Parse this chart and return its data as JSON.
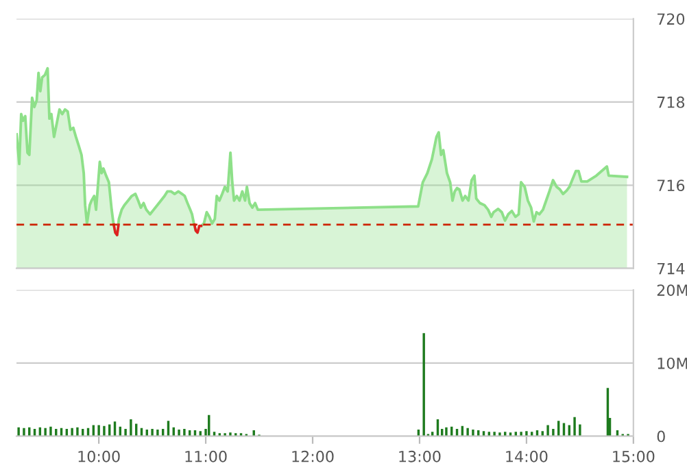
{
  "chart_data": [
    {
      "type": "area",
      "xlim": [
        9.23,
        15.0
      ],
      "ylim": [
        714,
        720
      ],
      "yticks": [
        714,
        716,
        718,
        720
      ],
      "grid": "y",
      "tick_labels": "y",
      "ref_lines": [
        {
          "axis": "y",
          "value": 715.05,
          "color": "#cc2200",
          "line_style": "dashed"
        }
      ],
      "x": [
        9.231,
        9.256,
        9.274,
        9.291,
        9.312,
        9.333,
        9.35,
        9.376,
        9.397,
        9.419,
        9.436,
        9.453,
        9.47,
        9.496,
        9.521,
        9.538,
        9.556,
        9.581,
        9.607,
        9.632,
        9.658,
        9.684,
        9.709,
        9.735,
        9.761,
        9.786,
        9.812,
        9.838,
        9.859,
        9.872,
        9.889,
        9.915,
        9.932,
        9.957,
        9.974,
        9.991,
        10.009,
        10.026,
        10.043,
        10.068,
        10.094,
        10.12,
        10.137,
        10.154,
        10.171,
        10.188,
        10.214,
        10.239,
        10.274,
        10.308,
        10.342,
        10.368,
        10.393,
        10.419,
        10.444,
        10.479,
        10.513,
        10.547,
        10.581,
        10.615,
        10.641,
        10.675,
        10.709,
        10.744,
        10.778,
        10.803,
        10.829,
        10.855,
        10.872,
        10.889,
        10.906,
        10.923,
        10.94,
        10.957,
        10.983,
        11.009,
        11.034,
        11.06,
        11.085,
        11.103,
        11.128,
        11.154,
        11.179,
        11.205,
        11.231,
        11.248,
        11.265,
        11.291,
        11.316,
        11.342,
        11.368,
        11.385,
        11.41,
        11.436,
        11.462,
        11.487,
        12.987,
        13.03,
        13.073,
        13.115,
        13.158,
        13.179,
        13.201,
        13.222,
        13.256,
        13.286,
        13.308,
        13.329,
        13.35,
        13.372,
        13.402,
        13.427,
        13.457,
        13.487,
        13.513,
        13.53,
        13.564,
        13.607,
        13.641,
        13.671,
        13.692,
        13.735,
        13.769,
        13.799,
        13.829,
        13.863,
        13.897,
        13.927,
        13.949,
        13.983,
        14.013,
        14.043,
        14.068,
        14.094,
        14.12,
        14.154,
        14.184,
        14.214,
        14.248,
        14.282,
        14.312,
        14.342,
        14.376,
        14.402,
        14.427,
        14.462,
        14.487,
        14.513,
        14.568,
        14.654,
        14.752,
        14.769,
        14.94
      ],
      "series": [
        {
          "type": "area",
          "color": "#8ee089",
          "values": [
            717.22,
            716.51,
            717.71,
            717.55,
            717.66,
            716.78,
            716.73,
            718.1,
            717.88,
            718.04,
            718.7,
            718.26,
            718.59,
            718.65,
            718.81,
            717.6,
            717.71,
            717.16,
            717.49,
            717.82,
            717.71,
            717.82,
            717.77,
            717.33,
            717.38,
            717.16,
            716.95,
            716.73,
            716.29,
            715.52,
            715.08,
            715.52,
            715.63,
            715.74,
            715.41,
            715.96,
            716.56,
            716.29,
            716.4,
            716.23,
            716.07,
            715.41,
            715.08,
            714.86,
            714.8,
            715.19,
            715.41,
            715.52,
            715.63,
            715.74,
            715.79,
            715.63,
            715.46,
            715.57,
            715.41,
            715.3,
            715.41,
            715.52,
            715.63,
            715.74,
            715.85,
            715.85,
            715.79,
            715.85,
            715.79,
            715.74,
            715.57,
            715.41,
            715.3,
            715.08,
            714.91,
            714.86,
            715.02,
            715.02,
            715.08,
            715.35,
            715.24,
            715.08,
            715.19,
            715.74,
            715.63,
            715.79,
            715.96,
            715.85,
            716.78,
            716.07,
            715.63,
            715.74,
            715.63,
            715.85,
            715.63,
            715.96,
            715.57,
            715.46,
            715.57,
            715.41,
            715.49,
            716.07,
            716.29,
            716.62,
            717.16,
            717.27,
            716.73,
            716.84,
            716.29,
            716.07,
            715.63,
            715.85,
            715.93,
            715.9,
            715.63,
            715.74,
            715.63,
            716.12,
            716.23,
            715.68,
            715.57,
            715.52,
            715.41,
            715.24,
            715.35,
            715.43,
            715.35,
            715.15,
            715.3,
            715.38,
            715.24,
            715.3,
            716.07,
            715.96,
            715.63,
            715.46,
            715.13,
            715.35,
            715.3,
            715.41,
            715.63,
            715.85,
            716.12,
            715.96,
            715.9,
            715.79,
            715.87,
            715.96,
            716.12,
            716.34,
            716.34,
            716.09,
            716.09,
            716.23,
            716.45,
            716.23,
            716.2
          ]
        },
        {
          "type": "line",
          "color": "#e02020",
          "x": [
            10.14,
            10.154,
            10.171,
            10.185,
            null,
            10.895,
            10.906,
            10.923,
            10.94,
            10.957
          ],
          "values": [
            715.05,
            714.86,
            714.8,
            715.05,
            null,
            715.05,
            714.91,
            714.86,
            715.02,
            715.02
          ]
        }
      ]
    },
    {
      "type": "bar",
      "xlim": [
        9.23,
        15.0
      ],
      "ylim": [
        0,
        20
      ],
      "yticks": [
        {
          "value": 0,
          "label": "0"
        },
        {
          "value": 10,
          "label": "10M"
        },
        {
          "value": 20,
          "label": "20M"
        }
      ],
      "xticks": [
        {
          "value": 10,
          "label": "10:00"
        },
        {
          "value": 11,
          "label": "11:00"
        },
        {
          "value": 12,
          "label": "12:00"
        },
        {
          "value": 13,
          "label": "13:00"
        },
        {
          "value": 14,
          "label": "14:00"
        },
        {
          "value": 15,
          "label": "15:00"
        }
      ],
      "grid": "y",
      "color": "#1e7b1e",
      "x": [
        9.25,
        9.3,
        9.35,
        9.4,
        9.45,
        9.5,
        9.55,
        9.6,
        9.65,
        9.7,
        9.75,
        9.8,
        9.85,
        9.9,
        9.95,
        10.0,
        10.05,
        10.1,
        10.15,
        10.2,
        10.25,
        10.3,
        10.35,
        10.4,
        10.45,
        10.5,
        10.55,
        10.6,
        10.65,
        10.7,
        10.75,
        10.8,
        10.85,
        10.9,
        10.95,
        11.0,
        11.03,
        11.08,
        11.13,
        11.18,
        11.23,
        11.28,
        11.33,
        11.38,
        11.45,
        11.5,
        12.99,
        13.04,
        13.08,
        13.12,
        13.17,
        13.21,
        13.25,
        13.3,
        13.35,
        13.4,
        13.45,
        13.5,
        13.55,
        13.6,
        13.65,
        13.7,
        13.75,
        13.8,
        13.85,
        13.9,
        13.95,
        14.0,
        14.05,
        14.1,
        14.15,
        14.2,
        14.25,
        14.3,
        14.35,
        14.4,
        14.45,
        14.5,
        14.76,
        14.78,
        14.85,
        14.9,
        14.95
      ],
      "values": [
        1.2,
        1.1,
        1.2,
        1.0,
        1.2,
        1.1,
        1.3,
        1.0,
        1.1,
        1.0,
        1.1,
        1.2,
        1.0,
        1.1,
        1.5,
        1.5,
        1.4,
        1.6,
        2.0,
        1.3,
        1.0,
        2.3,
        1.7,
        1.1,
        0.9,
        1.0,
        0.9,
        1.0,
        2.1,
        1.2,
        0.9,
        1.0,
        0.8,
        0.8,
        0.7,
        1.0,
        2.9,
        0.6,
        0.4,
        0.4,
        0.5,
        0.4,
        0.4,
        0.3,
        0.8,
        0.2,
        0.9,
        14.1,
        0.3,
        0.6,
        2.3,
        1.0,
        1.2,
        1.3,
        1.0,
        1.4,
        1.1,
        0.9,
        0.8,
        0.7,
        0.6,
        0.6,
        0.5,
        0.6,
        0.5,
        0.6,
        0.6,
        0.7,
        0.6,
        0.8,
        0.7,
        1.5,
        1.0,
        2.1,
        1.8,
        1.5,
        2.6,
        1.6,
        6.6,
        2.5,
        0.8,
        0.3,
        0.3
      ]
    }
  ]
}
